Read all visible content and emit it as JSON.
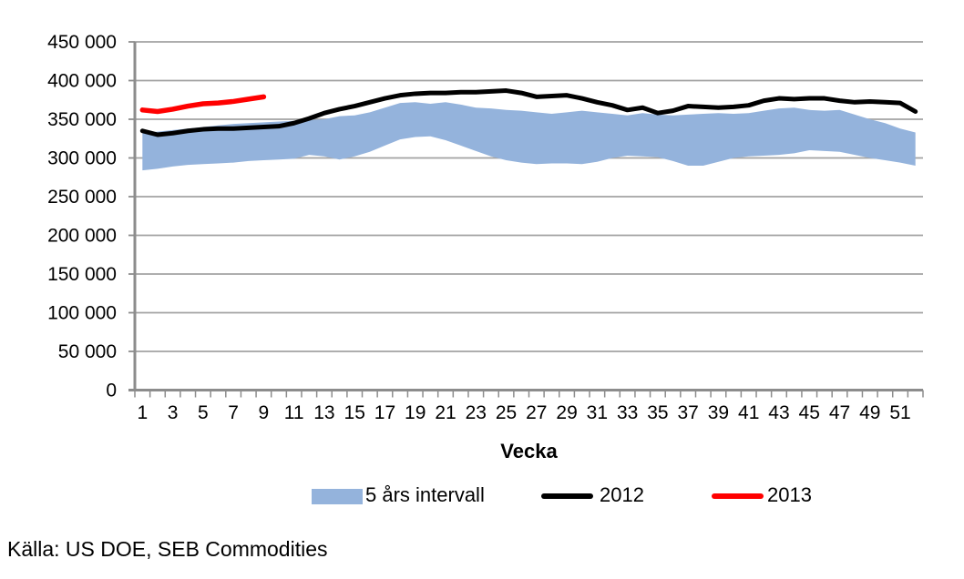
{
  "chart_data": {
    "type": "area+line",
    "title": "",
    "xlabel": "Vecka",
    "ylabel": "",
    "ylim": [
      0,
      450000
    ],
    "grid": true,
    "legend_position": "bottom",
    "x": [
      1,
      2,
      3,
      4,
      5,
      6,
      7,
      8,
      9,
      10,
      11,
      12,
      13,
      14,
      15,
      16,
      17,
      18,
      19,
      20,
      21,
      22,
      23,
      24,
      25,
      26,
      27,
      28,
      29,
      30,
      31,
      32,
      33,
      34,
      35,
      36,
      37,
      38,
      39,
      40,
      41,
      42,
      43,
      44,
      45,
      46,
      47,
      48,
      49,
      50,
      51,
      52
    ],
    "x_tick_positions": [
      1,
      3,
      5,
      7,
      9,
      11,
      13,
      15,
      17,
      19,
      21,
      23,
      25,
      27,
      29,
      31,
      33,
      35,
      37,
      39,
      41,
      43,
      45,
      47,
      49,
      51
    ],
    "x_tick_labels": [
      "1",
      "3",
      "5",
      "7",
      "9",
      "11",
      "13",
      "15",
      "17",
      "19",
      "21",
      "23",
      "25",
      "27",
      "29",
      "31",
      "33",
      "35",
      "37",
      "39",
      "41",
      "43",
      "45",
      "47",
      "49",
      "51"
    ],
    "y_tick_values": [
      0,
      50000,
      100000,
      150000,
      200000,
      250000,
      300000,
      350000,
      400000,
      450000
    ],
    "y_tick_labels": [
      "0",
      "50 000",
      "100 000",
      "150 000",
      "200 000",
      "250 000",
      "300 000",
      "350 000",
      "400 000",
      "450 000"
    ],
    "series": [
      {
        "name": "5 års intervall",
        "type": "band",
        "color": "#94B3DC",
        "upper": [
          332000,
          334000,
          336000,
          338000,
          340000,
          342000,
          344000,
          345000,
          346000,
          347000,
          348000,
          349000,
          350000,
          354000,
          355000,
          359000,
          365000,
          371000,
          372000,
          370000,
          372000,
          369000,
          365000,
          364000,
          362000,
          361000,
          359000,
          357000,
          359000,
          361000,
          359000,
          357000,
          355000,
          358000,
          356000,
          355000,
          356000,
          357000,
          358000,
          357000,
          358000,
          361000,
          364000,
          365000,
          362000,
          361000,
          362000,
          356000,
          350000,
          345000,
          338000,
          333000
        ],
        "lower": [
          284000,
          286000,
          289000,
          291000,
          292000,
          293000,
          294000,
          296000,
          297000,
          298000,
          299000,
          304000,
          302000,
          298000,
          302000,
          308000,
          316000,
          324000,
          327000,
          328000,
          323000,
          316000,
          309000,
          302000,
          297000,
          294000,
          292000,
          293000,
          293000,
          292000,
          295000,
          300000,
          303000,
          302000,
          301000,
          296000,
          290000,
          290000,
          295000,
          300000,
          302000,
          303000,
          304000,
          306000,
          310000,
          309000,
          308000,
          304000,
          300000,
          297000,
          294000,
          290000
        ]
      },
      {
        "name": "2012",
        "type": "line",
        "color": "#000000",
        "values": [
          335000,
          330000,
          332000,
          335000,
          337000,
          338000,
          338000,
          339000,
          340000,
          341000,
          345000,
          351000,
          358000,
          363000,
          367000,
          372000,
          377000,
          381000,
          383000,
          384000,
          384000,
          385000,
          385000,
          386000,
          387000,
          384000,
          379000,
          380000,
          381000,
          377000,
          372000,
          368000,
          362000,
          365000,
          358000,
          361000,
          367000,
          366000,
          365000,
          366000,
          368000,
          374000,
          377000,
          376000,
          377000,
          377000,
          374000,
          372000,
          373000,
          372000,
          371000,
          360000
        ]
      },
      {
        "name": "2013",
        "type": "line",
        "color": "#FF0000",
        "values": [
          362000,
          360000,
          363000,
          367000,
          370000,
          371000,
          373000,
          376000,
          379000
        ]
      }
    ]
  },
  "axis": {
    "x_title": "Vecka"
  },
  "legend": {
    "band_label": "5 års intervall",
    "line2012_label": "2012",
    "line2013_label": "2013"
  },
  "source": {
    "text": "Källa: US DOE, SEB Commodities"
  },
  "colors": {
    "band": "#94B3DC",
    "line_2012": "#000000",
    "line_2013": "#FF0000",
    "gridline": "#A3A3A3",
    "axis": "#8C8C8C",
    "text": "#000000",
    "background": "#FFFFFF"
  }
}
